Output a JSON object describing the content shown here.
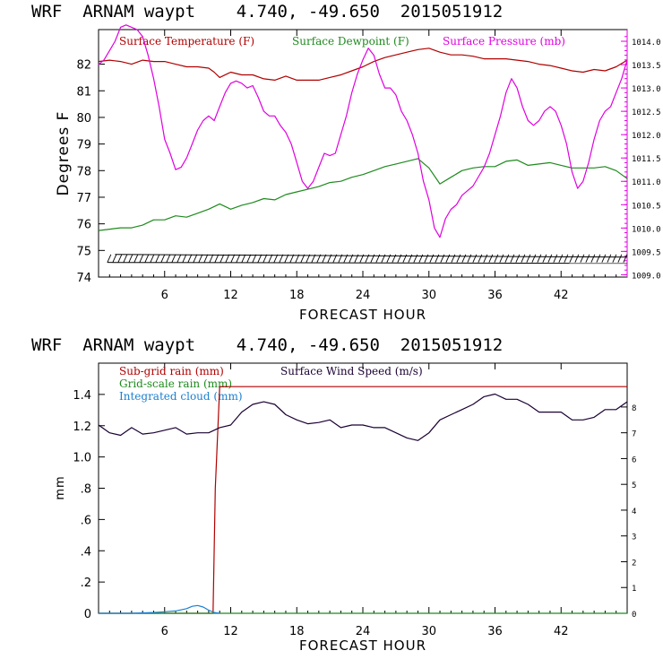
{
  "colors": {
    "temperature": "#b00000",
    "dewpoint": "#1e8a1e",
    "pressure": "#e000e0",
    "subgrid_rain": "#b00000",
    "gridscale_rain": "#1e8a1e",
    "cloud": "#1a7fd0",
    "wind": "#1a0033",
    "axis": "#000000"
  },
  "chart_data": [
    {
      "type": "line",
      "title": "WRF  ARNAM waypt    4.740, -49.650  2015051912",
      "xlabel": "FORECAST HOUR",
      "ylabel": "Degrees F",
      "xlim": [
        0,
        48
      ],
      "x_ticks": [
        "6",
        "12",
        "18",
        "24",
        "30",
        "36",
        "42"
      ],
      "x_tick_values": [
        6,
        12,
        18,
        24,
        30,
        36,
        42
      ],
      "ylim": [
        74,
        83.3
      ],
      "y_ticks": [
        "74",
        "75",
        "76",
        "77",
        "78",
        "79",
        "80",
        "81",
        "82"
      ],
      "y_tick_values": [
        74,
        75,
        76,
        77,
        78,
        79,
        80,
        81,
        82
      ],
      "y2lim": [
        1008.95,
        1014.25
      ],
      "y2_ticks": [
        "1009.0",
        "1009.5",
        "1010.0",
        "1010.5",
        "1011.0",
        "1011.5",
        "1012.0",
        "1012.5",
        "1013.0",
        "1013.5",
        "1014.0"
      ],
      "y2_tick_values": [
        1009.0,
        1009.5,
        1010.0,
        1010.5,
        1011.0,
        1011.5,
        1012.0,
        1012.5,
        1013.0,
        1013.5,
        1014.0
      ],
      "legend": [
        {
          "label": "Surface Temperature (F)",
          "color": "#b00000"
        },
        {
          "label": "Surface Dewpoint (F)",
          "color": "#1e8a1e"
        },
        {
          "label": "Surface Pressure (mb)",
          "color": "#e000e0"
        }
      ],
      "series": [
        {
          "name": "Surface Temperature (F)",
          "color": "#b00000",
          "axis": "left",
          "x": [
            0,
            1,
            2,
            3,
            4,
            5,
            6,
            7,
            8,
            9,
            10,
            10.5,
            11,
            12,
            13,
            14,
            15,
            16,
            17,
            18,
            19,
            20,
            21,
            22,
            23,
            24,
            25,
            26,
            27,
            28,
            29,
            30,
            31,
            32,
            33,
            34,
            35,
            36,
            37,
            38,
            39,
            40,
            41,
            42,
            43,
            44,
            45,
            46,
            47,
            48
          ],
          "values": [
            82.1,
            82.15,
            82.1,
            82.0,
            82.15,
            82.1,
            82.1,
            82.0,
            81.9,
            81.9,
            81.85,
            81.7,
            81.5,
            81.7,
            81.6,
            81.6,
            81.45,
            81.4,
            81.55,
            81.4,
            81.4,
            81.4,
            81.5,
            81.6,
            81.75,
            81.9,
            82.1,
            82.25,
            82.35,
            82.45,
            82.55,
            82.6,
            82.45,
            82.35,
            82.35,
            82.3,
            82.2,
            82.2,
            82.2,
            82.15,
            82.1,
            82.0,
            81.95,
            81.85,
            81.75,
            81.7,
            81.8,
            81.75,
            81.9,
            82.15
          ]
        },
        {
          "name": "Surface Dewpoint (F)",
          "color": "#1e8a1e",
          "axis": "left",
          "x": [
            0,
            1,
            2,
            3,
            4,
            5,
            6,
            7,
            8,
            9,
            10,
            11,
            12,
            13,
            14,
            15,
            16,
            17,
            18,
            19,
            20,
            21,
            22,
            23,
            24,
            25,
            26,
            27,
            28,
            29,
            30,
            31,
            32,
            33,
            34,
            35,
            36,
            37,
            38,
            39,
            40,
            41,
            42,
            43,
            44,
            45,
            46,
            47,
            48
          ],
          "values": [
            75.75,
            75.8,
            75.85,
            75.85,
            75.95,
            76.15,
            76.15,
            76.3,
            76.25,
            76.4,
            76.55,
            76.75,
            76.55,
            76.7,
            76.8,
            76.95,
            76.9,
            77.1,
            77.2,
            77.3,
            77.4,
            77.55,
            77.6,
            77.75,
            77.85,
            78.0,
            78.15,
            78.25,
            78.35,
            78.45,
            78.1,
            77.5,
            77.75,
            78.0,
            78.1,
            78.15,
            78.15,
            78.35,
            78.4,
            78.2,
            78.25,
            78.3,
            78.2,
            78.1,
            78.1,
            78.1,
            78.15,
            78.0,
            77.7
          ]
        },
        {
          "name": "Surface Pressure (mb)",
          "color": "#e000e0",
          "axis": "right",
          "x": [
            0,
            0.5,
            1,
            1.5,
            2,
            2.5,
            3,
            3.5,
            4,
            4.5,
            5,
            5.5,
            6,
            6.5,
            7,
            7.5,
            8,
            8.5,
            9,
            9.5,
            10,
            10.5,
            11,
            11.5,
            12,
            12.5,
            13,
            13.5,
            14,
            14.5,
            15,
            15.5,
            16,
            16.5,
            17,
            17.5,
            18,
            18.5,
            19,
            19.5,
            20,
            20.5,
            21,
            21.5,
            22,
            22.5,
            23,
            23.5,
            24,
            24.5,
            25,
            25.5,
            26,
            26.5,
            27,
            27.5,
            28,
            28.5,
            29,
            29.5,
            30,
            30.5,
            31,
            31.5,
            32,
            32.5,
            33,
            33.5,
            34,
            34.5,
            35,
            35.5,
            36,
            36.5,
            37,
            37.5,
            38,
            38.5,
            39,
            39.5,
            40,
            40.5,
            41,
            41.5,
            42,
            42.5,
            43,
            43.5,
            44,
            44.5,
            45,
            45.5,
            46,
            46.5,
            47,
            47.5,
            48
          ],
          "values": [
            1013.5,
            1013.6,
            1013.8,
            1014.0,
            1014.3,
            1014.35,
            1014.3,
            1014.25,
            1014.1,
            1013.7,
            1013.2,
            1012.6,
            1011.9,
            1011.6,
            1011.25,
            1011.3,
            1011.5,
            1011.8,
            1012.1,
            1012.3,
            1012.4,
            1012.3,
            1012.6,
            1012.9,
            1013.1,
            1013.15,
            1013.1,
            1013.0,
            1013.05,
            1012.8,
            1012.5,
            1012.4,
            1012.4,
            1012.2,
            1012.05,
            1011.8,
            1011.4,
            1011.0,
            1010.85,
            1011.0,
            1011.3,
            1011.6,
            1011.55,
            1011.6,
            1012.0,
            1012.4,
            1012.9,
            1013.3,
            1013.6,
            1013.85,
            1013.7,
            1013.3,
            1013.0,
            1013.0,
            1012.85,
            1012.5,
            1012.3,
            1012.0,
            1011.6,
            1011.0,
            1010.6,
            1010.0,
            1009.8,
            1010.2,
            1010.4,
            1010.5,
            1010.7,
            1010.8,
            1010.9,
            1011.1,
            1011.3,
            1011.6,
            1012.0,
            1012.4,
            1012.9,
            1013.2,
            1013.0,
            1012.6,
            1012.3,
            1012.2,
            1012.3,
            1012.5,
            1012.6,
            1012.5,
            1012.2,
            1011.8,
            1011.2,
            1010.85,
            1011.0,
            1011.4,
            1011.9,
            1012.3,
            1012.5,
            1012.6,
            1012.9,
            1013.2,
            1013.6
          ]
        }
      ]
    },
    {
      "type": "line",
      "title": "WRF  ARNAM waypt    4.740, -49.650  2015051912",
      "xlabel": "FORECAST HOUR",
      "ylabel": "mm",
      "xlim": [
        0,
        48
      ],
      "x_ticks": [
        "6",
        "12",
        "18",
        "24",
        "30",
        "36",
        "42"
      ],
      "x_tick_values": [
        6,
        12,
        18,
        24,
        30,
        36,
        42
      ],
      "ylim": [
        0,
        1.6
      ],
      "y_ticks": [
        "0",
        ".2",
        ".4",
        ".6",
        ".8",
        "1.0",
        "1.2",
        "1.4"
      ],
      "y_tick_values": [
        0,
        0.2,
        0.4,
        0.6,
        0.8,
        1.0,
        1.2,
        1.4
      ],
      "y2lim": [
        0,
        9.7
      ],
      "y2_ticks": [
        "0",
        "1",
        "2",
        "3",
        "4",
        "5",
        "6",
        "7",
        "8"
      ],
      "y2_tick_values": [
        0,
        1,
        2,
        3,
        4,
        5,
        6,
        7,
        8
      ],
      "legend": [
        {
          "label": "Sub-grid rain (mm)",
          "color": "#b00000"
        },
        {
          "label": "Grid-scale rain (mm)",
          "color": "#1e8a1e"
        },
        {
          "label": "Integrated cloud (mm)",
          "color": "#1a7fd0"
        },
        {
          "label": "Surface Wind Speed (m/s)",
          "color": "#1a0033"
        }
      ],
      "series": [
        {
          "name": "Sub-grid rain (mm)",
          "color": "#b00000",
          "axis": "left",
          "x": [
            0,
            10.4,
            10.6,
            11.0,
            48
          ],
          "values": [
            0,
            0,
            0.8,
            1.45,
            1.45
          ]
        },
        {
          "name": "Grid-scale rain (mm)",
          "color": "#1e8a1e",
          "axis": "left",
          "x": [
            0,
            48
          ],
          "values": [
            0,
            0
          ]
        },
        {
          "name": "Integrated cloud (mm)",
          "color": "#1a7fd0",
          "axis": "left",
          "x": [
            0,
            3,
            5,
            6,
            7,
            8,
            8.5,
            9,
            9.5,
            10,
            10.5,
            11
          ],
          "values": [
            0,
            0,
            0.005,
            0.01,
            0.015,
            0.03,
            0.045,
            0.05,
            0.04,
            0.02,
            0.005,
            0
          ]
        },
        {
          "name": "Surface Wind Speed (m/s)",
          "color": "#1a0033",
          "axis": "right",
          "x": [
            0,
            1,
            2,
            3,
            4,
            5,
            6,
            7,
            8,
            9,
            10,
            11,
            12,
            13,
            14,
            15,
            16,
            17,
            18,
            19,
            20,
            21,
            22,
            23,
            24,
            25,
            26,
            27,
            28,
            29,
            30,
            31,
            32,
            33,
            34,
            35,
            36,
            37,
            38,
            39,
            40,
            41,
            42,
            43,
            44,
            45,
            46,
            47,
            48
          ],
          "values": [
            7.3,
            7.0,
            6.9,
            7.2,
            6.95,
            7.0,
            7.1,
            7.2,
            6.95,
            7.0,
            7.0,
            7.2,
            7.3,
            7.8,
            8.1,
            8.2,
            8.1,
            7.7,
            7.5,
            7.35,
            7.4,
            7.5,
            7.2,
            7.3,
            7.3,
            7.2,
            7.2,
            7.0,
            6.8,
            6.7,
            7.0,
            7.5,
            7.7,
            7.9,
            8.1,
            8.4,
            8.5,
            8.3,
            8.3,
            8.1,
            7.8,
            7.8,
            7.8,
            7.5,
            7.5,
            7.6,
            7.9,
            7.9,
            8.2
          ]
        }
      ]
    }
  ]
}
